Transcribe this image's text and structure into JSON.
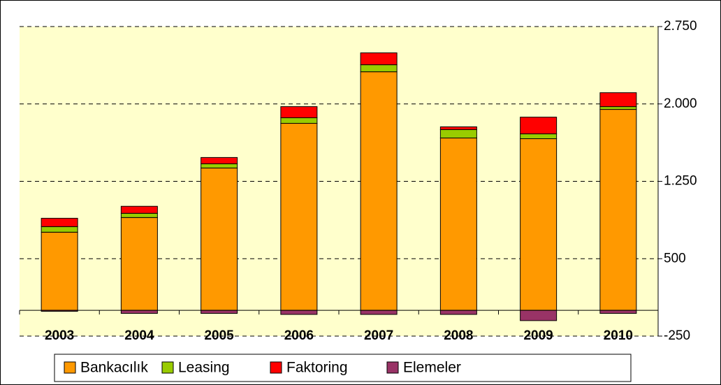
{
  "chart_data": {
    "type": "stacked_bar",
    "categories": [
      "2003",
      "2004",
      "2005",
      "2006",
      "2007",
      "2008",
      "2009",
      "2010"
    ],
    "series": [
      {
        "name": "Bankacılık",
        "color": "#ff9900",
        "values": [
          757,
          899,
          1379,
          1812,
          2312,
          1670,
          1663,
          1947
        ]
      },
      {
        "name": "Leasing",
        "color": "#99cc00",
        "values": [
          54,
          41,
          41,
          54,
          68,
          81,
          47,
          27
        ]
      },
      {
        "name": "Faktoring",
        "color": "#ff0000",
        "values": [
          81,
          68,
          61,
          108,
          115,
          27,
          162,
          135
        ]
      },
      {
        "name": "Elemeler",
        "color": "#993366",
        "values": [
          -10,
          -30,
          -30,
          -40,
          -40,
          -40,
          -100,
          -30
        ]
      }
    ],
    "ylim": [
      -250,
      2750
    ],
    "yticks": [
      -250,
      500,
      {
        "value": 1250,
        "label": "1.250"
      },
      {
        "value": 2000,
        "label": "2.000"
      },
      {
        "value": 2750,
        "label": "2.750"
      }
    ],
    "grid": true
  }
}
